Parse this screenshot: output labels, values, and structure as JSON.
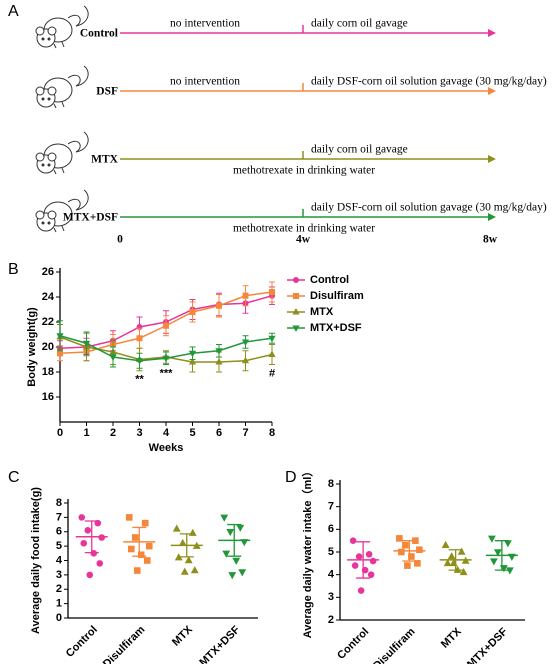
{
  "panel_a": {
    "label": "A",
    "timepoints": [
      "0",
      "4w",
      "8w"
    ],
    "rows": [
      {
        "label": "Control",
        "color": "#e8359a",
        "before": "no intervention",
        "after": "daily corn oil gavage"
      },
      {
        "label": "DSF",
        "color": "#f5873b",
        "before": "no intervention",
        "after": "daily DSF-corn oil solution gavage (30 mg/kg/day)"
      },
      {
        "label": "MTX",
        "color": "#8f8f1c",
        "after": "daily corn oil gavage",
        "below": "methotrexate in drinking water"
      },
      {
        "label": "MTX+DSF",
        "color": "#22973a",
        "after": "daily DSF-corn oil solution gavage (30 mg/kg/day)",
        "below": "methotrexate in drinking water"
      }
    ]
  },
  "chart_data": [
    {
      "type": "line",
      "label": "B",
      "xlabel": "Weeks",
      "ylabel": "Body weight(g)",
      "x": [
        0,
        1,
        2,
        3,
        4,
        5,
        6,
        7,
        8
      ],
      "xlim": [
        0,
        8
      ],
      "xticks": [
        0,
        1,
        2,
        3,
        4,
        5,
        6,
        7,
        8
      ],
      "ylim": [
        14,
        26
      ],
      "yticks": [
        16,
        18,
        20,
        22,
        24,
        26
      ],
      "legend": "top-right",
      "series": [
        {
          "name": "Control",
          "color": "#e8359a",
          "marker": "circle",
          "values": [
            19.9,
            20.0,
            20.5,
            21.6,
            22.0,
            23.0,
            23.4,
            23.5,
            24.1
          ],
          "errors": [
            0.6,
            0.7,
            0.8,
            0.8,
            0.9,
            0.8,
            0.9,
            0.8,
            0.7
          ]
        },
        {
          "name": "Disulfiram",
          "color": "#f5873b",
          "marker": "square",
          "values": [
            19.5,
            19.6,
            20.2,
            20.7,
            21.7,
            22.8,
            23.3,
            24.1,
            24.4
          ],
          "errors": [
            0.6,
            0.7,
            0.8,
            0.8,
            0.8,
            0.8,
            0.9,
            0.8,
            0.8
          ]
        },
        {
          "name": "MTX",
          "color": "#8f8f1c",
          "marker": "triangle",
          "values": [
            20.8,
            20.0,
            19.6,
            19.0,
            19.2,
            18.8,
            18.8,
            18.9,
            19.4
          ],
          "errors": [
            1.0,
            1.1,
            1.0,
            0.9,
            0.5,
            0.8,
            0.8,
            0.8,
            0.8
          ]
        },
        {
          "name": "MTX+DSF",
          "color": "#22973a",
          "marker": "triangle-down",
          "values": [
            20.9,
            20.3,
            19.2,
            18.9,
            19.1,
            19.5,
            19.7,
            20.4,
            20.7
          ],
          "errors": [
            1.2,
            0.9,
            0.8,
            0.6,
            0.5,
            0.5,
            0.5,
            0.5,
            0.4
          ]
        }
      ],
      "annotations": [
        {
          "text": "**",
          "x": 3
        },
        {
          "text": "***",
          "x": 4
        },
        {
          "text": "#",
          "x": 8
        }
      ]
    },
    {
      "type": "dotplot",
      "label": "C",
      "ylabel": "Average daily food intake(g)",
      "categories": [
        "Control",
        "Disulfiram",
        "MTX",
        "MTX+DSF"
      ],
      "colors": [
        "#e8359a",
        "#f5873b",
        "#8f8f1c",
        "#22973a"
      ],
      "markers": [
        "circle",
        "square",
        "triangle",
        "triangle-down"
      ],
      "ylim": [
        0,
        8
      ],
      "yticks": [
        0,
        1,
        2,
        3,
        4,
        5,
        6,
        7,
        8
      ],
      "points": [
        [
          7.0,
          6.6,
          6.1,
          5.6,
          5.2,
          4.5,
          3.8,
          3.0
        ],
        [
          7.0,
          6.6,
          5.6,
          5.0,
          4.8,
          4.4,
          4.0,
          3.3
        ],
        [
          6.2,
          5.9,
          5.2,
          5.0,
          4.2,
          4.0,
          3.3,
          3.2
        ],
        [
          7.0,
          6.3,
          6.0,
          5.3,
          4.5,
          4.0,
          3.2,
          3.0
        ]
      ],
      "means": [
        5.65,
        5.3,
        5.05,
        5.4
      ],
      "sds": [
        1.1,
        1.0,
        0.8,
        1.1
      ]
    },
    {
      "type": "dotplot",
      "label": "D",
      "ylabel": "Average daily water intake（ml）",
      "categories": [
        "Control",
        "Disulfiram",
        "MTX",
        "MTX+DSF"
      ],
      "colors": [
        "#e8359a",
        "#f5873b",
        "#8f8f1c",
        "#22973a"
      ],
      "markers": [
        "circle",
        "square",
        "triangle",
        "triangle-down"
      ],
      "ylim": [
        2,
        8
      ],
      "yticks": [
        2,
        3,
        4,
        5,
        6,
        7,
        8
      ],
      "points": [
        [
          5.5,
          4.9,
          4.8,
          4.6,
          4.4,
          4.2,
          4.0,
          3.3
        ],
        [
          5.6,
          5.5,
          5.3,
          5.1,
          5.0,
          4.8,
          4.5,
          4.4
        ],
        [
          5.3,
          5.0,
          4.8,
          4.6,
          4.5,
          4.2,
          4.1,
          4.5
        ],
        [
          5.6,
          5.4,
          5.0,
          4.8,
          4.6,
          4.3,
          4.2
        ]
      ],
      "means": [
        4.65,
        5.05,
        4.65,
        4.85
      ],
      "sds": [
        0.8,
        0.45,
        0.45,
        0.65
      ]
    }
  ]
}
